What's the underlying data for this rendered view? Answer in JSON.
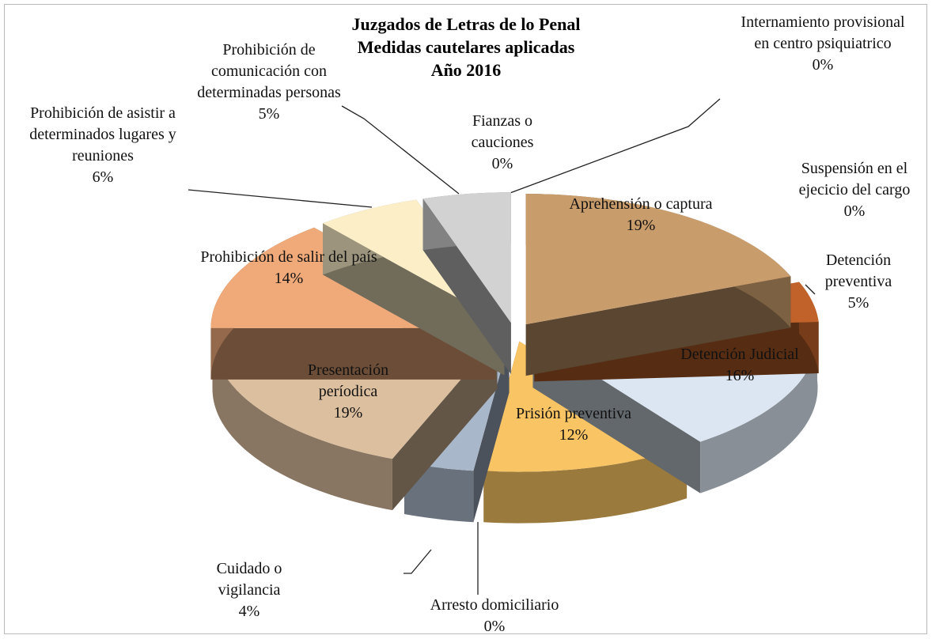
{
  "chart_data": {
    "type": "pie3d",
    "title": [
      "Juzgados de Letras de lo Penal",
      "Medidas cautelares aplicadas",
      "Año 2016"
    ],
    "categories": [
      "Internamiento provisional en centro psiquiatrico",
      "Suspensión en el ejecicio del cargo",
      "Aprehensión o captura",
      "Detención preventiva",
      "Detención Judicial",
      "Prisión preventiva",
      "Arresto domiciliario",
      "Cuidado o vigilancia",
      "Presentación períodica",
      "Prohibición de salir del país",
      "Prohibición de asistir a determinados lugares y reuniones",
      "Prohibición de comunicación con determinadas personas",
      "Fianzas o cauciones"
    ],
    "values": [
      0,
      0,
      19,
      5,
      16,
      12,
      0,
      4,
      19,
      14,
      6,
      5,
      0
    ],
    "value_labels": [
      "0%",
      "0%",
      "19%",
      "5%",
      "16%",
      "12%",
      "0%",
      "4%",
      "19%",
      "14%",
      "6%",
      "5%",
      "0%"
    ],
    "colors": [
      "#4f8f3f",
      "#7f7f7f",
      "#c99c6c",
      "#c0622a",
      "#dce6f2",
      "#f9c463",
      "#2e5fa3",
      "#a9b7ca",
      "#dcbf9e",
      "#f0aa7a",
      "#fcefc8",
      "#d2d2d2",
      "#2e75b6"
    ]
  }
}
